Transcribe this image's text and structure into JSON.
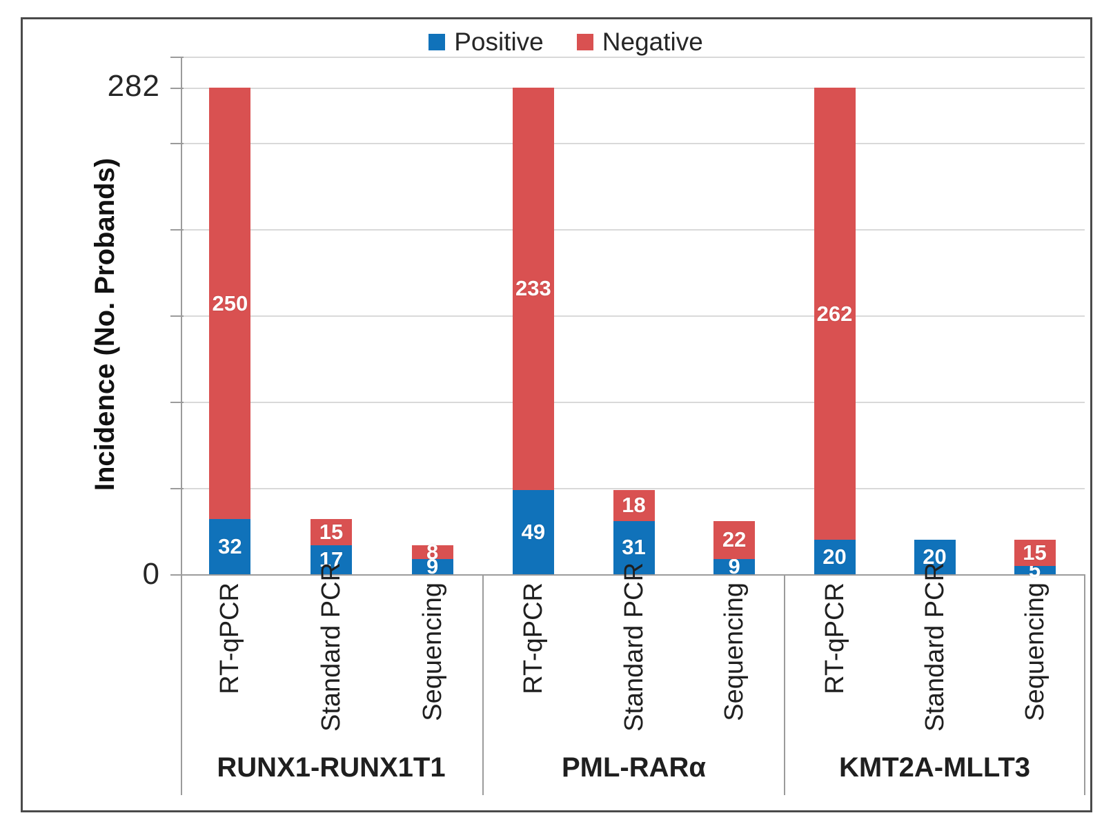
{
  "figure": {
    "background": "#ffffff",
    "border_color": "#4a4a4a",
    "gridline_color": "#d9d9d9",
    "axis_color": "#9b9b9b"
  },
  "legend": {
    "items": [
      {
        "label": "Positive",
        "color": "#1072ba"
      },
      {
        "label": "Negative",
        "color": "#d95151"
      }
    ]
  },
  "y_axis": {
    "title": "Incidence (No. Probands)",
    "top_tick_label": "282",
    "zero_tick_label": "0"
  },
  "chart_data": {
    "type": "bar",
    "stacked": true,
    "title": "",
    "xlabel": "",
    "ylabel": "Incidence (No. Probands)",
    "ylim": [
      0,
      300
    ],
    "gridline_values": [
      50,
      100,
      150,
      200,
      250,
      300
    ],
    "labeled_ticks": [
      282,
      0
    ],
    "grid": true,
    "legend_position": "top-center",
    "groups": [
      "RUNX1-RUNX1T1",
      "PML-RARα",
      "KMT2A-MLLT3"
    ],
    "categories": [
      "RT-qPCR",
      "Standard PCR",
      "Sequencing"
    ],
    "series": [
      {
        "name": "Positive",
        "color": "#1072ba",
        "values": [
          [
            32,
            17,
            9
          ],
          [
            49,
            31,
            9
          ],
          [
            20,
            20,
            5
          ]
        ]
      },
      {
        "name": "Negative",
        "color": "#d95151",
        "values": [
          [
            250,
            15,
            8
          ],
          [
            233,
            18,
            22
          ],
          [
            262,
            0,
            15
          ]
        ]
      }
    ]
  }
}
